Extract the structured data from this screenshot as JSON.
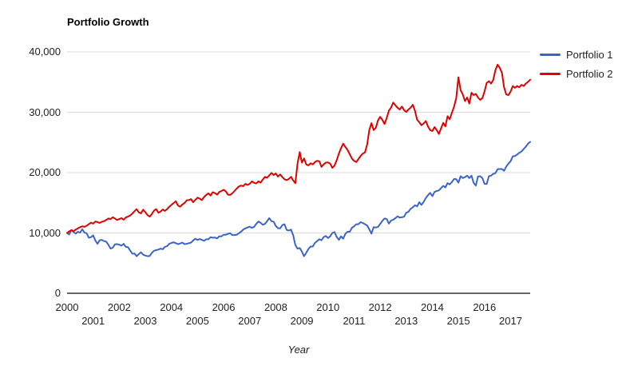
{
  "header": {
    "title": "Portfolio Growth"
  },
  "colors": {
    "portfolio1": "#3c64c8",
    "portfolio2": "#e10000",
    "gridline": "#dcdcdc",
    "axis_line": "#333333",
    "tick_text": "#222222",
    "background": "#ffffff"
  },
  "legend": {
    "position": "right-top",
    "items": [
      {
        "label": "Portfolio 1",
        "color": "#3c64c8"
      },
      {
        "label": "Portfolio 2",
        "color": "#e10000"
      }
    ]
  },
  "chart_data": {
    "type": "line",
    "title": "Portfolio Growth",
    "xlabel": "Year",
    "ylabel": "",
    "grid": true,
    "legend_position": "right-top",
    "xlim": [
      2000,
      2017.75
    ],
    "ylim": [
      0,
      40000
    ],
    "x_start": 2000,
    "x_step_years": 0.0833333,
    "x_ticks": [
      "2000",
      "2001",
      "2002",
      "2003",
      "2004",
      "2005",
      "2006",
      "2007",
      "2008",
      "2009",
      "2010",
      "2011",
      "2012",
      "2013",
      "2014",
      "2015",
      "2016",
      "2017"
    ],
    "y_ticks": [
      {
        "v": 0,
        "label": "0"
      },
      {
        "v": 10000,
        "label": "10,000"
      },
      {
        "v": 20000,
        "label": "20,000"
      },
      {
        "v": 30000,
        "label": "30,000"
      },
      {
        "v": 40000,
        "label": "40,000"
      }
    ],
    "series": [
      {
        "name": "Portfolio 1",
        "color": "#3c64c8",
        "values": [
          10000,
          9750,
          10500,
          10150,
          9900,
          10200,
          10050,
          10600,
          10050,
          9950,
          9200,
          9300,
          9600,
          8750,
          8200,
          8800,
          8850,
          8650,
          8550,
          8050,
          7400,
          7550,
          8100,
          8150,
          8050,
          7900,
          8200,
          7700,
          7650,
          7100,
          6550,
          6600,
          6150,
          6500,
          6800,
          6400,
          6250,
          6150,
          6200,
          6700,
          7050,
          7150,
          7250,
          7400,
          7300,
          7700,
          7800,
          8200,
          8350,
          8450,
          8300,
          8150,
          8250,
          8400,
          8150,
          8200,
          8300,
          8400,
          8750,
          9050,
          8850,
          9000,
          8850,
          8700,
          8950,
          8950,
          9300,
          9200,
          9250,
          9100,
          9450,
          9450,
          9700,
          9700,
          9850,
          9950,
          9650,
          9650,
          9700,
          9950,
          10200,
          10550,
          10750,
          10900,
          11050,
          10850,
          11000,
          11500,
          11900,
          11700,
          11350,
          11500,
          11950,
          12450,
          11950,
          11850,
          11150,
          10800,
          10750,
          11300,
          11450,
          10500,
          10400,
          10550,
          9600,
          8000,
          7400,
          7500,
          6900,
          6150,
          6700,
          7350,
          7750,
          7750,
          8350,
          8650,
          8950,
          8800,
          9300,
          9500,
          9150,
          9450,
          10000,
          10150,
          9350,
          8850,
          9450,
          9050,
          9850,
          10200,
          10200,
          10850,
          11100,
          11450,
          11450,
          11800,
          11650,
          11450,
          11250,
          10600,
          9900,
          10950,
          10900,
          11000,
          11500,
          12000,
          12400,
          12300,
          11550,
          12050,
          12200,
          12450,
          12750,
          12550,
          12600,
          12700,
          13350,
          13500,
          14000,
          14250,
          14600,
          14400,
          15100,
          14650,
          15150,
          15800,
          16250,
          16650,
          16100,
          16800,
          16950,
          17050,
          17450,
          17800,
          17550,
          18250,
          18050,
          18450,
          18950,
          18900,
          18350,
          19400,
          19100,
          19250,
          19500,
          19100,
          19500,
          18300,
          17850,
          19350,
          19400,
          19100,
          18150,
          18100,
          19400,
          19500,
          19800,
          19900,
          20550,
          20600,
          20600,
          20300,
          21000,
          21500,
          21900,
          22700,
          22750,
          23000,
          23300,
          23500,
          23900,
          24300,
          24800,
          25100
        ]
      },
      {
        "name": "Portfolio 2",
        "color": "#e10000",
        "values": [
          10000,
          10250,
          10450,
          10300,
          10550,
          10750,
          10950,
          11100,
          11000,
          11200,
          11450,
          11700,
          11550,
          11900,
          11800,
          11650,
          11850,
          11950,
          12150,
          12400,
          12300,
          12600,
          12400,
          12150,
          12300,
          12450,
          12200,
          12550,
          12700,
          12900,
          13200,
          13600,
          13950,
          13400,
          13250,
          13850,
          13450,
          12950,
          12700,
          13150,
          13700,
          13950,
          13350,
          13550,
          13900,
          13650,
          13950,
          14350,
          14650,
          14950,
          15250,
          14550,
          14350,
          14700,
          14950,
          15400,
          15450,
          15600,
          15100,
          15500,
          15850,
          15700,
          15450,
          15950,
          16300,
          16550,
          16200,
          16750,
          16600,
          16350,
          16800,
          16950,
          17150,
          16900,
          16350,
          16300,
          16550,
          16950,
          17350,
          17700,
          17850,
          17750,
          18150,
          17950,
          18150,
          18550,
          18300,
          18200,
          18550,
          18350,
          18850,
          19300,
          19150,
          19550,
          19950,
          19600,
          19850,
          19350,
          19700,
          19250,
          18900,
          18750,
          18950,
          19300,
          18700,
          18250,
          21500,
          23400,
          21650,
          22350,
          21350,
          21200,
          21550,
          21350,
          21750,
          21950,
          21900,
          20950,
          21350,
          21650,
          21700,
          21500,
          20800,
          21150,
          22050,
          23150,
          24050,
          24800,
          24250,
          23750,
          23050,
          22350,
          21950,
          21750,
          22250,
          22750,
          23150,
          23350,
          24650,
          27050,
          28200,
          27050,
          27450,
          28650,
          29250,
          28750,
          28050,
          29050,
          30250,
          30750,
          31600,
          31150,
          30750,
          30450,
          30950,
          30350,
          30050,
          30450,
          30750,
          31250,
          30250,
          28750,
          28350,
          27850,
          28150,
          28550,
          27650,
          27050,
          26900,
          27550,
          27050,
          26400,
          27350,
          28250,
          27650,
          29350,
          28850,
          29950,
          30950,
          32350,
          35800,
          33650,
          32950,
          31850,
          32450,
          31450,
          33250,
          32850,
          33050,
          32450,
          32050,
          32350,
          33450,
          34850,
          35150,
          34750,
          35350,
          36950,
          37900,
          37350,
          36550,
          34150,
          32950,
          32850,
          33450,
          34350,
          34050,
          34350,
          34150,
          34550,
          34350,
          34750,
          35050,
          35400
        ]
      }
    ]
  }
}
